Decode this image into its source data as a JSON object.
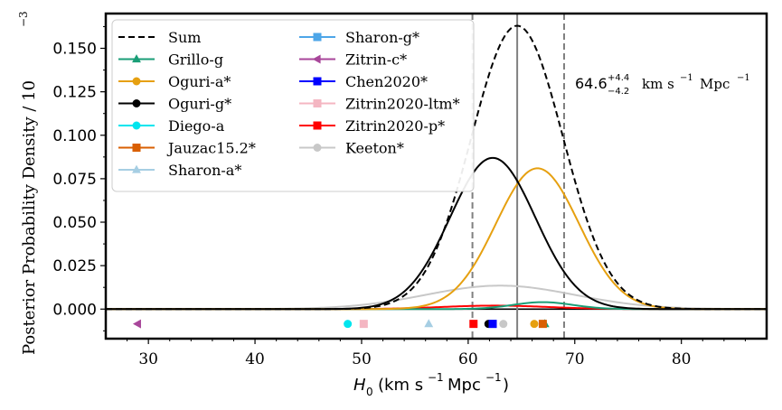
{
  "chart_data": {
    "type": "line",
    "title": "",
    "xlabel": "H0 (km s^-1 Mpc^-1)",
    "xlabel_main": "H",
    "xlabel_sub": "0",
    "xlabel_units_1": "(km s",
    "xlabel_units_sup": "−1",
    "xlabel_units_2": "Mpc",
    "xlabel_units_sup2": "−1",
    "xlabel_units_3": ")",
    "ylabel": "Posterior Probability Density / 10^-3",
    "ylabel_main": "Posterior Probability Density / 10",
    "ylabel_sup": "−3",
    "xlim": [
      26,
      88
    ],
    "ylim": [
      -0.017,
      0.17
    ],
    "x_ticks": [
      30,
      40,
      50,
      60,
      70,
      80
    ],
    "x_tick_labels": [
      "30",
      "40",
      "50",
      "60",
      "70",
      "80"
    ],
    "y_ticks": [
      0.0,
      0.025,
      0.05,
      0.075,
      0.1,
      0.125,
      0.15
    ],
    "y_tick_labels": [
      "0.000",
      "0.025",
      "0.050",
      "0.075",
      "0.100",
      "0.125",
      "0.150"
    ],
    "vertical_lines": [
      {
        "x": 60.4,
        "style": "dashed",
        "color": "#808080"
      },
      {
        "x": 64.6,
        "style": "solid",
        "color": "#808080"
      },
      {
        "x": 69.0,
        "style": "dashed",
        "color": "#808080"
      }
    ],
    "annotation": {
      "value": "64.6",
      "plus": "+4.4",
      "minus": "−4.2",
      "units_a": "km s",
      "units_sup": "−1",
      "units_b": "Mpc",
      "units_sup2": "−1"
    },
    "legend_position": "upper-left",
    "series": [
      {
        "name": "Sum",
        "color": "#000000",
        "dash": true,
        "curve": {
          "type": "gauss",
          "mu": 64.6,
          "sigma": 4.3,
          "amp": 0.163
        }
      },
      {
        "name": "Grillo-g",
        "color": "#1a9e77",
        "marker": "triangle-up",
        "point_x": 67.2,
        "curve": {
          "type": "gauss",
          "mu": 67.0,
          "sigma": 2.8,
          "amp": 0.004
        }
      },
      {
        "name": "Oguri-a*",
        "color": "#e6a010",
        "marker": "circle",
        "point_x": 66.2,
        "curve": {
          "type": "gauss",
          "mu": 66.5,
          "sigma": 3.9,
          "amp": 0.081
        }
      },
      {
        "name": "Oguri-g*",
        "color": "#000000",
        "marker": "circle",
        "point_x": 61.9,
        "curve": {
          "type": "gauss",
          "mu": 62.3,
          "sigma": 4.0,
          "amp": 0.087
        }
      },
      {
        "name": "Diego-a",
        "color": "#00e5ee",
        "marker": "circle",
        "point_x": 48.7
      },
      {
        "name": "Jauzac15.2*",
        "color": "#d95f02",
        "marker": "square",
        "point_x": 67.0
      },
      {
        "name": "Sharon-a*",
        "color": "#a6cee3",
        "marker": "triangle-up",
        "point_x": 56.3
      },
      {
        "name": "Sharon-g*",
        "color": "#4da6e8",
        "marker": "square",
        "point_x": 62.3
      },
      {
        "name": "Zitrin-c*",
        "color": "#a8469a",
        "marker": "triangle-left",
        "point_x": 29.0
      },
      {
        "name": "Chen2020*",
        "color": "#0000ff",
        "marker": "square",
        "point_x": 62.3
      },
      {
        "name": "Zitrin2020-ltm*",
        "color": "#f4b6c2",
        "marker": "square",
        "point_x": 50.2
      },
      {
        "name": "Zitrin2020-p*",
        "color": "#ff0000",
        "marker": "square",
        "point_x": 60.5,
        "curve": {
          "type": "gauss",
          "mu": 62.5,
          "sigma": 5.0,
          "amp": 0.002
        }
      },
      {
        "name": "Keeton*",
        "color": "#c8c8c8",
        "marker": "circle",
        "point_x": 63.3,
        "curve": {
          "type": "gauss",
          "mu": 63.0,
          "sigma": 7.0,
          "amp": 0.0135
        }
      }
    ]
  }
}
